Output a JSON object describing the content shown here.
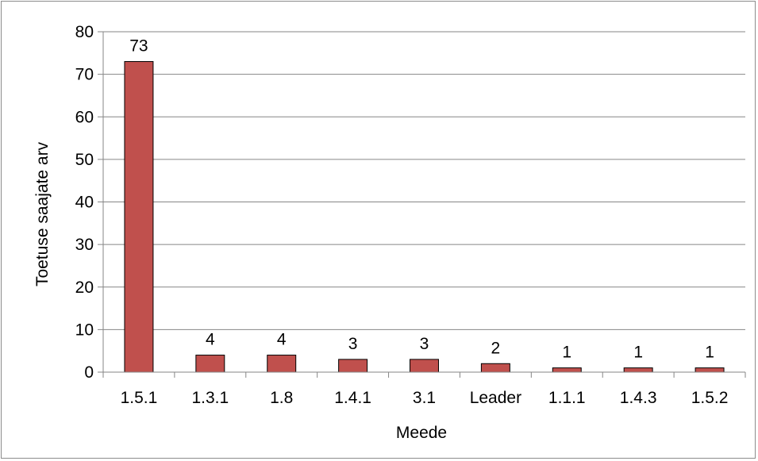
{
  "chart_data": {
    "type": "bar",
    "title": "",
    "xlabel": "Meede",
    "ylabel": "Toetuse saajate arv",
    "categories": [
      "1.5.1",
      "1.3.1",
      "1.8",
      "1.4.1",
      "3.1",
      "Leader",
      "1.1.1",
      "1.4.3",
      "1.5.2"
    ],
    "values": [
      73,
      4,
      4,
      3,
      3,
      2,
      1,
      1,
      1
    ],
    "data_labels": [
      "73",
      "4",
      "4",
      "3",
      "3",
      "2",
      "1",
      "1",
      "1"
    ],
    "ylim": [
      0,
      80
    ],
    "yticks": [
      0,
      10,
      20,
      30,
      40,
      50,
      60,
      70,
      80
    ],
    "ytick_labels": [
      "0",
      "10",
      "20",
      "30",
      "40",
      "50",
      "60",
      "70",
      "80"
    ],
    "grid": "horizontal",
    "legend": "none",
    "colors": {
      "bar_fill": "#c0504d",
      "bar_stroke": "#000000",
      "grid": "#868686",
      "axis": "#868686"
    }
  }
}
